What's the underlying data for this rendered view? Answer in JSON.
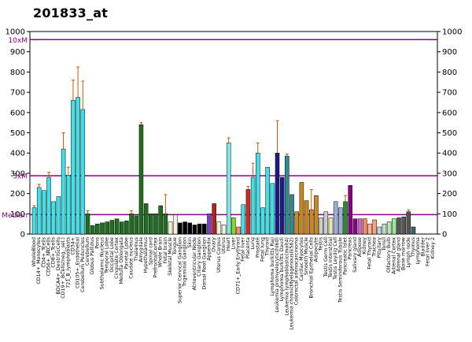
{
  "chart_data": {
    "type": "bar",
    "title": "201833_at",
    "xlabel": "",
    "ylabel": "",
    "ylim": [
      0,
      1000
    ],
    "yticks": [
      0,
      100,
      200,
      300,
      400,
      500,
      600,
      700,
      800,
      900,
      1000
    ],
    "reference_lines": [
      {
        "label": "10xM",
        "value": 960,
        "color": "#8b008b"
      },
      {
        "label": "3xM",
        "value": 288,
        "color": "#8b008b"
      },
      {
        "label": "Median",
        "value": 96,
        "color": "#8b008b"
      }
    ],
    "categories": [
      "WholeBlood",
      "CD14+_Monocytes",
      "CD4+_Tcells",
      "CD56+_NKCells",
      "CD8+_Tcells",
      "BDCA4+_DentriticCells",
      "CD19+_BCells(neg._sel.)",
      "721_B_lymphoblasts",
      "CD34+",
      "CD105+_Endothelial",
      "Cerebellum Peduncles",
      "Cerebellum",
      "Globus Pallidus",
      "Pons",
      "Subthalamic Nucleus",
      "Temporal Lobe",
      "Occipital Lobe",
      "Cingulate Cortex",
      "Medulla Oblongata",
      "Parietal Lobe",
      "Caudate nucleus",
      "Thalamus",
      "Amygdala",
      "Hypothalamus",
      "Spinal cord",
      "PrefrontalCortex",
      "Whole Brain",
      "Fetal brain",
      "Skeletal Muscle",
      "Tongue",
      "Superior Cervical Ganglion",
      "Trigeminal Ganglion",
      "Skin",
      "Atrioventricular Node",
      "Ciliary Ganglion",
      "Dorsal Root Ganglion",
      "Appendix",
      "Ovary",
      "Uterus Corpus",
      "Uterus",
      "Heart",
      "Liver",
      "CD71+_Early Erythroid",
      "Fetal liver",
      "Placenta",
      "Lung",
      "Prostate",
      "Fetal lung",
      "Thyroid",
      "Lymphoma burkitts Raji",
      "Leukemia promyelocytic(hl60)",
      "Lymphoma burkitts Daudi",
      "Leukemia lymphoblastic(molt4)",
      "Leukemia chronicMyelogenous(k562)",
      "Colorectal adenocarcinoma",
      "Cardiac Myocytes",
      "Smooth Muscle",
      "Bronchial Epithelial Cells",
      "Adipocyte",
      "Testis",
      "Testis Germ Cell",
      "Testis Interstitial",
      "Testis Leydig Cell",
      "Testis Seminiferous Tubule",
      "Pancreatic Islet",
      "Pancreas",
      "Salivary gland",
      "Adipose",
      "Kidney",
      "Fetal Thyroid",
      "Trachea",
      "Pituitary",
      "Tonsil",
      "Olfactory Bulb",
      "Adrenal Cortex",
      "Adrenal gland",
      "Bone marrow",
      "Lymph node",
      "Thymus",
      "Lymphoma",
      "Bladder",
      "Fetal liver 2",
      "Kidney 2"
    ],
    "x_tick_labels": [
      "WholeBlood",
      "CD14+_Monocytes",
      "CD4+_Tcells",
      "CD56+_NKCells",
      "CD8+_Tcells",
      "BDCA4+_DentriticCells",
      "CD19+_BCells(neg._sel.)",
      "721_B_lymphoblasts",
      "CD34+",
      "CD105+_Endothelial",
      "Cerebellum Peduncles",
      "Cerebellum",
      "Globus Pallidus",
      "Pons",
      "Subthalamic Nucleus",
      "Temporal Lobe",
      "Occipital Lobe",
      "Cingulate Cortex",
      "Medulla Oblongata",
      "Parietal Lobe",
      "Caudate nucleus",
      "Thalamus",
      "Amygdala",
      "Hypothalamus",
      "Spinal cord",
      "PrefrontalCortex",
      "Whole Brain",
      "Fetal brain",
      "Skeletal Muscle",
      "Tongue",
      "Superior Cervical Ganglion",
      "Trigeminal Ganglion",
      "Skin",
      "Atrioventricular Node",
      "Ciliary Ganglion",
      "Dorsal Root Ganglion",
      "Appendix",
      "Ovary",
      "Uterus Corpus",
      "Uterus",
      "Heart",
      "Liver",
      "CD71+_Early Erythroid",
      "Fetal liver",
      "Placenta",
      "Lung",
      "Prostate",
      "Fetal lung",
      "Thyroid",
      "Lymphoma burkitts Raji",
      "Leukemia promyelocytic(hl60)",
      "Lymphoma burkitts Daudi",
      "Leukemia lymphoblastic(molt4)",
      "Leukemia chronicMyelogenous(k562)",
      "Colorectal adenocarcinoma",
      "Cardiac Myocytes",
      "Smooth Muscle",
      "Bronchial Epithelial Cells",
      "Adipocyte",
      "Testis",
      "Testis Germ Cell",
      "Testis Interstitial",
      "Testis Leydig Cell",
      "Testis Seminiferous Tubule",
      "Pancreatic Islet",
      "Pancreas",
      "Salivary gland",
      "Adipose",
      "Kidney",
      "Fetal Thyroid",
      "Trachea",
      "Pituitary",
      "Tonsil",
      "Olfactory Bulb",
      "Adrenal Cortex",
      "Adrenal gland",
      "Bone marrow",
      "Lymph node",
      "Thymus",
      "Lymphoma",
      "Bladder",
      "Fetal liver 2",
      "Kidney 2"
    ],
    "values": [
      130,
      230,
      215,
      280,
      160,
      185,
      420,
      290,
      660,
      675,
      615,
      100,
      42,
      50,
      55,
      60,
      68,
      75,
      60,
      65,
      100,
      90,
      540,
      150,
      100,
      100,
      140,
      100,
      60,
      95,
      55,
      60,
      55,
      45,
      50,
      50,
      100,
      150,
      60,
      45,
      450,
      80,
      35,
      145,
      220,
      280,
      400,
      130,
      330,
      250,
      400,
      280,
      385,
      195,
      110,
      255,
      165,
      120,
      190,
      80,
      110,
      80,
      160,
      130,
      160,
      240,
      75,
      75,
      75,
      50,
      70,
      35,
      50,
      60,
      75,
      80,
      85,
      110,
      35,
      0,
      0,
      0,
      0
    ],
    "errors": [
      10,
      15,
      0,
      25,
      0,
      0,
      80,
      40,
      100,
      150,
      140,
      15,
      0,
      0,
      0,
      0,
      0,
      0,
      0,
      0,
      15,
      0,
      10,
      0,
      0,
      0,
      0,
      95,
      0,
      0,
      0,
      0,
      0,
      0,
      0,
      0,
      0,
      0,
      0,
      0,
      25,
      0,
      0,
      0,
      15,
      70,
      50,
      0,
      0,
      0,
      160,
      0,
      10,
      0,
      0,
      0,
      0,
      100,
      0,
      0,
      0,
      0,
      0,
      0,
      30,
      0,
      0,
      0,
      0,
      0,
      0,
      0,
      0,
      0,
      0,
      0,
      0,
      10,
      0,
      0,
      0,
      0,
      0
    ],
    "colors": [
      "#40e0e8",
      "#40e0e8",
      "#40e0e8",
      "#40e0e8",
      "#40e0e8",
      "#40e0e8",
      "#40e0e8",
      "#40e0e8",
      "#40e0e8",
      "#40e0e8",
      "#40e0e8",
      "#1f6e1f",
      "#1f6e1f",
      "#1f6e1f",
      "#1f6e1f",
      "#1f6e1f",
      "#1f6e1f",
      "#1f6e1f",
      "#1f6e1f",
      "#1f6e1f",
      "#1f6e1f",
      "#1f6e1f",
      "#1f6e1f",
      "#1f6e1f",
      "#1f6e1f",
      "#1f6e1f",
      "#1f6e1f",
      "#1f6e1f",
      "#f5f0dc",
      "#f5f0dc",
      "#000000",
      "#000000",
      "#000000",
      "#000000",
      "#000000",
      "#000000",
      "#7b3fbf",
      "#b22222",
      "#f5f0dc",
      "#f5f0dc",
      "#80e8e8",
      "#80e020",
      "#ff8a65",
      "#40e0e8",
      "#dd2222",
      "#40e0e8",
      "#40e0e8",
      "#40e0e8",
      "#40e0e8",
      "#40e0e8",
      "#1a1a8a",
      "#1a1a8a",
      "#2e8b8b",
      "#2e8b8b",
      "#cc8820",
      "#cc8820",
      "#cc8820",
      "#cc8820",
      "#cc8820",
      "#cccccc",
      "#cccccc",
      "#e8e8b0",
      "#9bb0d8",
      "#9bb0d8",
      "#2a8b2a",
      "#8b008b",
      "#8b008b",
      "#cc66cc",
      "#ff8a65",
      "#ffb090",
      "#ffa080",
      "#b0d8e8",
      "#c0e0c0",
      "#c0e0c0",
      "#90ee90",
      "#555555",
      "#555555",
      "#555555",
      "#2e6b6b",
      "#2e6b6b",
      "#ff8060",
      "#8888cc",
      "#555555"
    ],
    "grid": false,
    "legend": "none"
  }
}
